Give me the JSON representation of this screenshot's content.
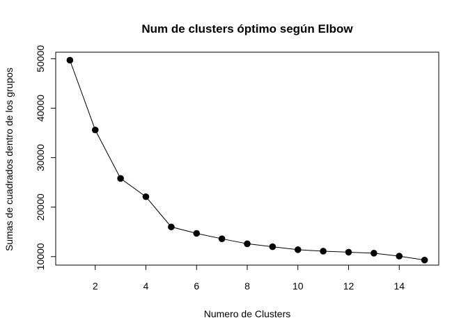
{
  "chart_data": {
    "type": "line",
    "title": "Num de clusters óptimo según Elbow",
    "xlabel": "Numero de Clusters",
    "ylabel": "Sumas de cuadrados dentro de los grupos",
    "x": [
      1,
      2,
      3,
      4,
      5,
      6,
      7,
      8,
      9,
      10,
      11,
      12,
      13,
      14,
      15
    ],
    "series": [
      {
        "values": [
          49700,
          35600,
          25800,
          22100,
          16000,
          14700,
          13600,
          12600,
          12000,
          11400,
          11100,
          10900,
          10700,
          10100,
          9300
        ]
      }
    ],
    "xlim": [
      0.44,
      15.56
    ],
    "ylim": [
      8284,
      51316
    ],
    "xticks": [
      2,
      4,
      6,
      8,
      10,
      12,
      14
    ],
    "yticks": [
      10000,
      20000,
      30000,
      40000,
      50000
    ],
    "marker": "filled-circle",
    "line_color": "#000000",
    "marker_color": "#000000",
    "grid": false,
    "legend": "none"
  }
}
